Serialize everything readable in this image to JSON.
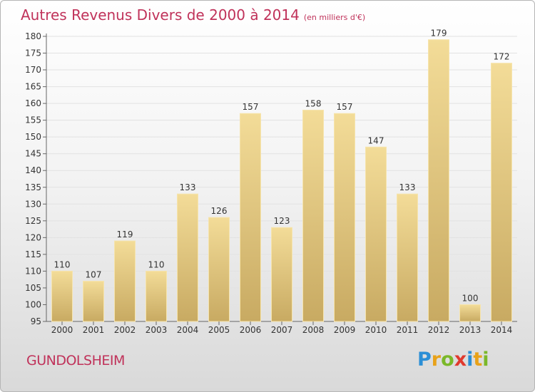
{
  "title": "Autres Revenus Divers de 2000 à 2014",
  "unit_note": "(en milliers d'€)",
  "commune": "GUNDOLSHEIM",
  "logo": {
    "text": "Proxiti",
    "letters": [
      {
        "char": "P",
        "color": "#2b8fd6"
      },
      {
        "char": "r",
        "color": "#e8a21a"
      },
      {
        "char": "o",
        "color": "#7ab829"
      },
      {
        "char": "x",
        "color": "#e03a2e"
      },
      {
        "char": "i",
        "color": "#2b8fd6"
      },
      {
        "char": "t",
        "color": "#e8a21a"
      },
      {
        "char": "i",
        "color": "#7ab829"
      }
    ]
  },
  "colors": {
    "title": "#c0325a",
    "bar_top": "#f3dc98",
    "bar_bottom": "#c8aa62",
    "grid": "#e2e2e2"
  },
  "chart_data": {
    "type": "bar",
    "title": "Autres Revenus Divers de 2000 à 2014",
    "subtitle": "(en milliers d'€)",
    "categories": [
      "2000",
      "2001",
      "2002",
      "2003",
      "2004",
      "2005",
      "2006",
      "2007",
      "2008",
      "2009",
      "2010",
      "2011",
      "2012",
      "2013",
      "2014"
    ],
    "values": [
      110,
      107,
      119,
      110,
      133,
      126,
      157,
      123,
      158,
      157,
      147,
      133,
      179,
      100,
      172
    ],
    "ylim": [
      95,
      180
    ],
    "yticks": [
      95,
      100,
      105,
      110,
      115,
      120,
      125,
      130,
      135,
      140,
      145,
      150,
      155,
      160,
      165,
      170,
      175,
      180
    ],
    "grid": true,
    "xlabel": "",
    "ylabel": ""
  }
}
